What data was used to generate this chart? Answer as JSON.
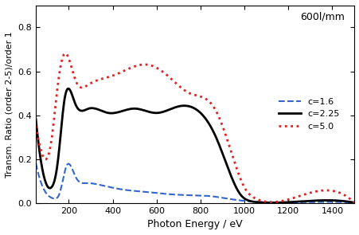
{
  "title_annotation": "600l/mm",
  "xlabel": "Photon Energy / eV",
  "ylabel": "Transm. Ratio (order 2-5)/order 1",
  "xlim": [
    50,
    1500
  ],
  "ylim": [
    0,
    0.9
  ],
  "yticks": [
    0.0,
    0.2,
    0.4,
    0.6,
    0.8
  ],
  "xticks": [
    200,
    400,
    600,
    800,
    1000,
    1200,
    1400
  ],
  "legend": [
    {
      "label": "c=1.6",
      "color": "#3366cc",
      "linestyle": "dashed"
    },
    {
      "label": "c=2.25",
      "color": "#000000",
      "linestyle": "solid"
    },
    {
      "label": "c=5.0",
      "color": "#dd2222",
      "linestyle": "dotted"
    }
  ],
  "c16_x": [
    50,
    100,
    130,
    160,
    190,
    230,
    280,
    350,
    450,
    550,
    650,
    750,
    850,
    950,
    1050,
    1150,
    1500
  ],
  "c16_y": [
    0.18,
    0.04,
    0.02,
    0.05,
    0.17,
    0.12,
    0.09,
    0.08,
    0.06,
    0.05,
    0.04,
    0.035,
    0.03,
    0.015,
    0.005,
    0.002,
    0.001
  ],
  "c225_x": [
    50,
    100,
    120,
    150,
    180,
    230,
    290,
    380,
    500,
    600,
    700,
    800,
    870,
    940,
    980,
    1020,
    1060,
    1150,
    1500
  ],
  "c225_y": [
    0.38,
    0.08,
    0.07,
    0.19,
    0.47,
    0.45,
    0.43,
    0.41,
    0.43,
    0.41,
    0.44,
    0.41,
    0.3,
    0.12,
    0.04,
    0.01,
    0.003,
    0.001,
    0.001
  ],
  "c50_x": [
    50,
    90,
    120,
    150,
    180,
    230,
    290,
    400,
    560,
    650,
    750,
    870,
    950,
    1000,
    1050,
    1150,
    1500
  ],
  "c50_y": [
    0.35,
    0.2,
    0.28,
    0.54,
    0.68,
    0.56,
    0.54,
    0.58,
    0.63,
    0.58,
    0.5,
    0.42,
    0.2,
    0.07,
    0.02,
    0.005,
    0.001
  ]
}
